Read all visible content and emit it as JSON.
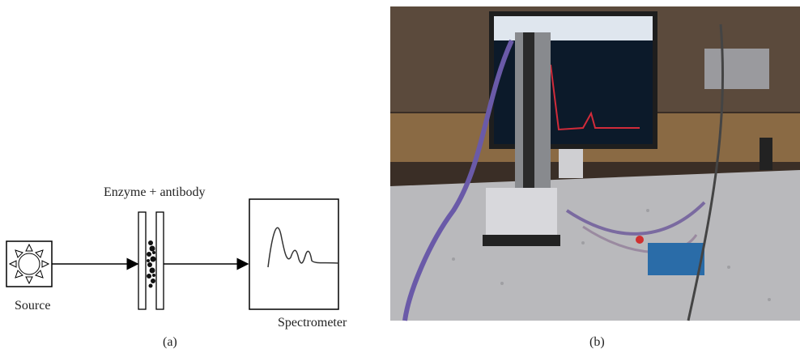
{
  "panel_a": {
    "label_enzyme": "Enzyme + antibody",
    "label_source": "Source",
    "label_spectrometer": "Spectrometer",
    "caption": "(a)"
  },
  "panel_b": {
    "caption": "(b)"
  }
}
